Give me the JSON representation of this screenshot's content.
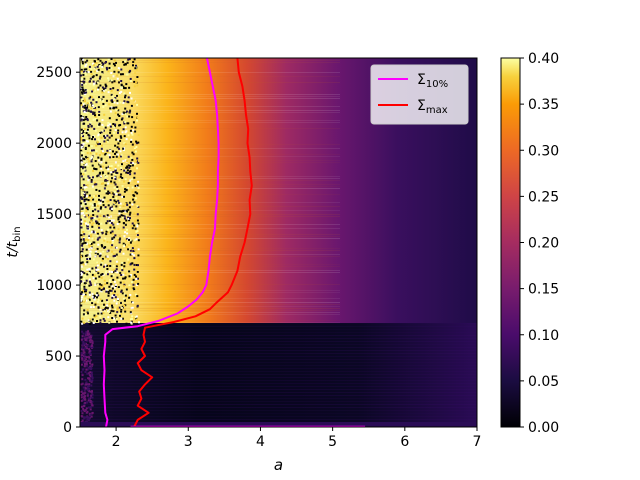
{
  "chart_data": {
    "type": "heatmap",
    "title": "",
    "xlabel": "a",
    "ylabel_main": "t/t",
    "ylabel_sub": "bin",
    "xlim": [
      1.5,
      7
    ],
    "ylim": [
      0,
      2600
    ],
    "x_ticks": [
      "2",
      "3",
      "4",
      "5",
      "6",
      "7"
    ],
    "y_ticks": [
      "0",
      "500",
      "1000",
      "1500",
      "2000",
      "2500"
    ],
    "colorbar": {
      "range": [
        0.0,
        0.4
      ],
      "ticks": [
        "0.00",
        "0.05",
        "0.10",
        "0.15",
        "0.20",
        "0.25",
        "0.30",
        "0.35",
        "0.40"
      ],
      "colormap": "inferno"
    },
    "legend_position": "top-right",
    "series": [
      {
        "name_main": "Σ",
        "name_sub": "10%",
        "color": "#ff00ff",
        "points": [
          [
            1.86,
            0
          ],
          [
            1.88,
            50
          ],
          [
            1.85,
            100
          ],
          [
            1.84,
            200
          ],
          [
            1.83,
            300
          ],
          [
            1.84,
            400
          ],
          [
            1.83,
            500
          ],
          [
            1.85,
            600
          ],
          [
            1.85,
            650
          ],
          [
            1.95,
            690
          ],
          [
            2.3,
            710
          ],
          [
            2.6,
            750
          ],
          [
            2.85,
            800
          ],
          [
            3.0,
            850
          ],
          [
            3.12,
            900
          ],
          [
            3.2,
            950
          ],
          [
            3.25,
            1000
          ],
          [
            3.28,
            1100
          ],
          [
            3.3,
            1200
          ],
          [
            3.33,
            1300
          ],
          [
            3.37,
            1400
          ],
          [
            3.38,
            1500
          ],
          [
            3.4,
            1600
          ],
          [
            3.41,
            1700
          ],
          [
            3.41,
            1800
          ],
          [
            3.42,
            1900
          ],
          [
            3.42,
            2000
          ],
          [
            3.41,
            2100
          ],
          [
            3.4,
            2200
          ],
          [
            3.38,
            2300
          ],
          [
            3.34,
            2400
          ],
          [
            3.3,
            2500
          ],
          [
            3.26,
            2600
          ]
        ]
      },
      {
        "name_main": "Σ",
        "name_sub": "max",
        "color": "#ff0000",
        "points": [
          [
            2.25,
            0
          ],
          [
            2.3,
            50
          ],
          [
            2.45,
            100
          ],
          [
            2.3,
            150
          ],
          [
            2.35,
            200
          ],
          [
            2.32,
            250
          ],
          [
            2.4,
            300
          ],
          [
            2.5,
            350
          ],
          [
            2.35,
            400
          ],
          [
            2.3,
            450
          ],
          [
            2.4,
            500
          ],
          [
            2.35,
            550
          ],
          [
            2.4,
            600
          ],
          [
            2.38,
            650
          ],
          [
            2.4,
            700
          ],
          [
            2.8,
            740
          ],
          [
            3.1,
            780
          ],
          [
            3.3,
            830
          ],
          [
            3.4,
            880
          ],
          [
            3.55,
            950
          ],
          [
            3.6,
            1000
          ],
          [
            3.68,
            1100
          ],
          [
            3.72,
            1200
          ],
          [
            3.78,
            1300
          ],
          [
            3.82,
            1400
          ],
          [
            3.86,
            1500
          ],
          [
            3.85,
            1600
          ],
          [
            3.88,
            1700
          ],
          [
            3.86,
            1800
          ],
          [
            3.85,
            1900
          ],
          [
            3.82,
            2000
          ],
          [
            3.83,
            2100
          ],
          [
            3.8,
            2200
          ],
          [
            3.78,
            2300
          ],
          [
            3.75,
            2400
          ],
          [
            3.7,
            2500
          ],
          [
            3.68,
            2600
          ]
        ]
      },
      {
        "name_main": "",
        "name_sub": "",
        "color": "#ff00ff",
        "points": [
          [
            2.2,
            2
          ],
          [
            5.45,
            2
          ]
        ]
      }
    ]
  }
}
